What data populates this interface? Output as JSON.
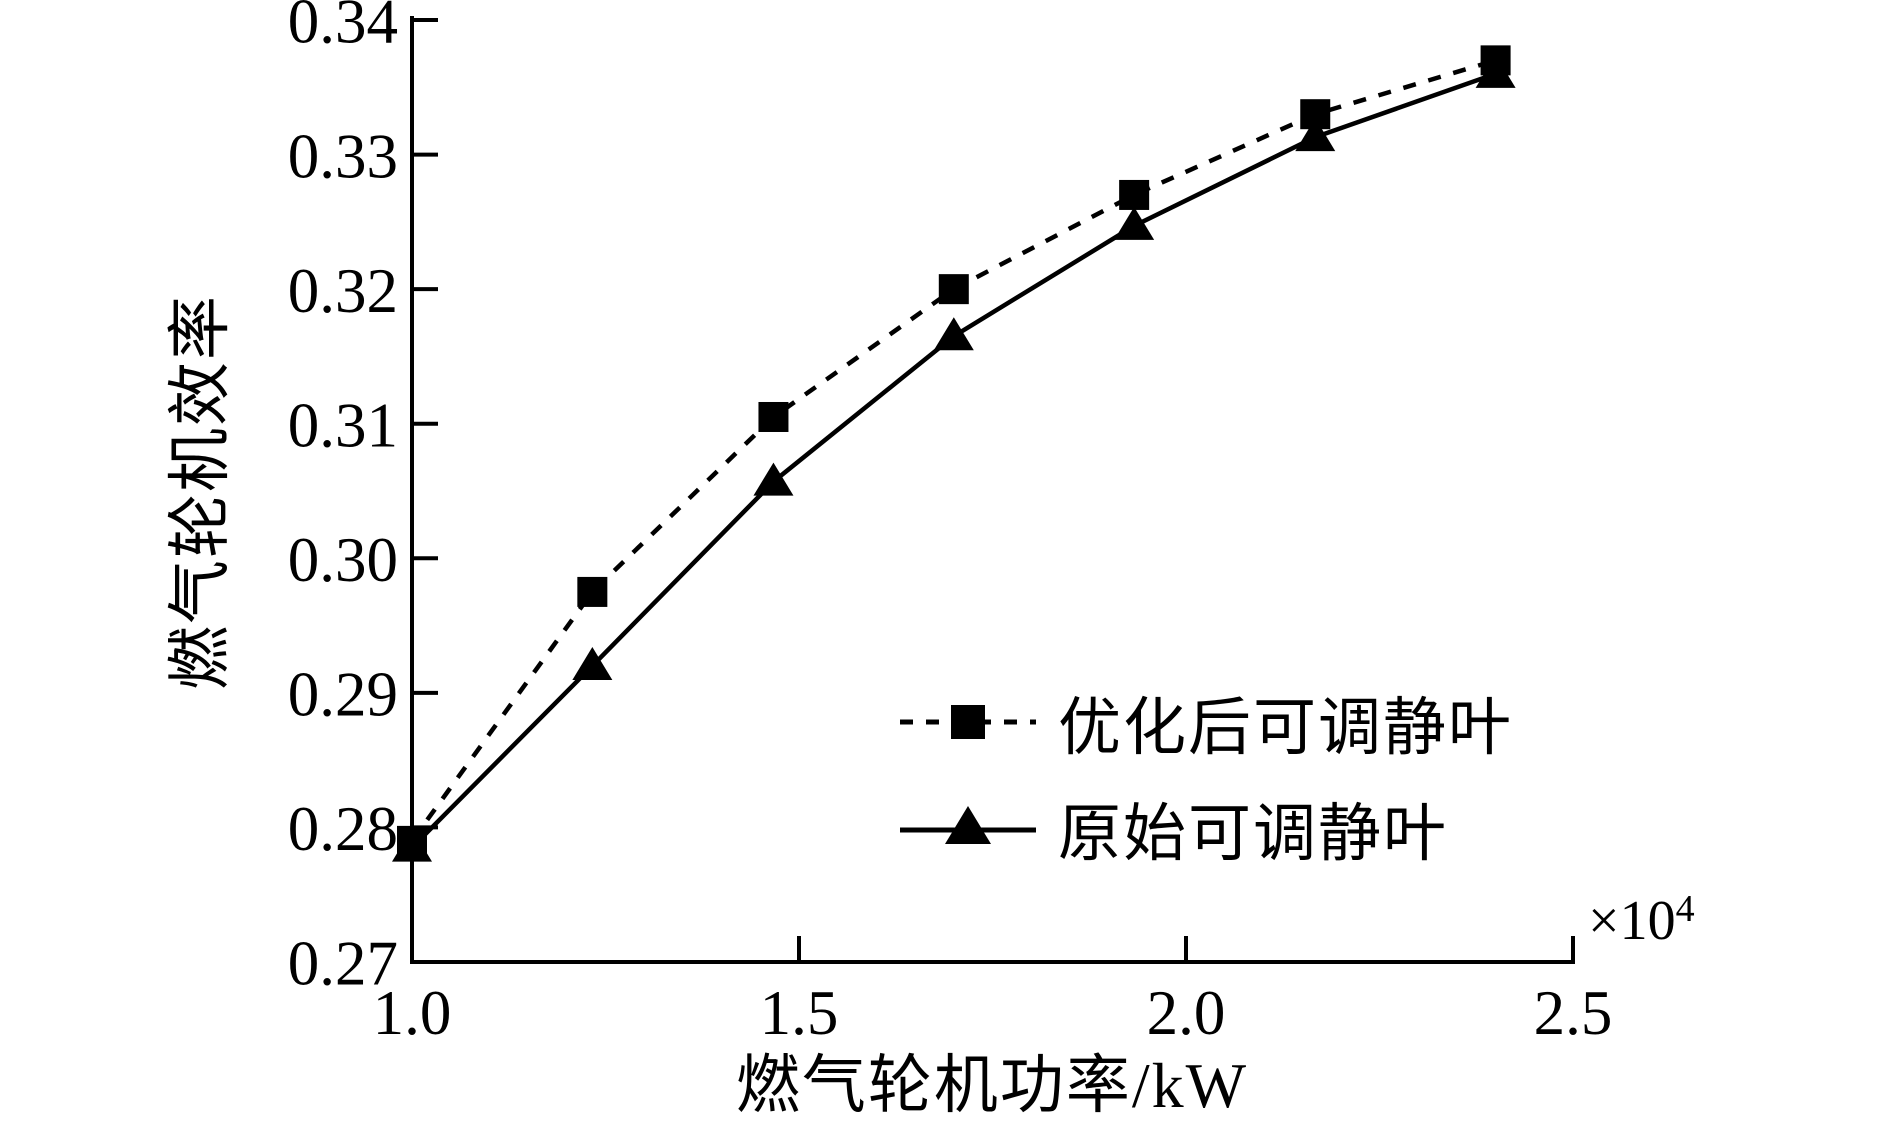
{
  "figure": {
    "background": "#ffffff",
    "ink": "#000000"
  },
  "axes": {
    "x_label": "燃气轮机功率/kW",
    "y_label": "燃气轮机效率",
    "x_ticks": [
      "1.0",
      "1.5",
      "2.0",
      "2.5"
    ],
    "y_ticks": [
      "0.27",
      "0.28",
      "0.29",
      "0.30",
      "0.31",
      "0.32",
      "0.33",
      "0.34"
    ],
    "x_offset": {
      "base": "×10",
      "exp": "4"
    }
  },
  "legend": {
    "entries": [
      {
        "label": "优化后可调静叶",
        "marker": "square",
        "line": "dotted"
      },
      {
        "label": "原始可调静叶",
        "marker": "triangle",
        "line": "solid"
      }
    ]
  },
  "chart_data": {
    "type": "line",
    "title": "",
    "xlabel": "燃气轮机功率/kW",
    "ylabel": "燃气轮机效率",
    "x_scale_note": "×10⁴ kW",
    "xlim": [
      1.0,
      2.5
    ],
    "ylim": [
      0.27,
      0.34
    ],
    "grid": false,
    "legend_position": "lower right",
    "x": [
      1.0,
      1.233,
      1.467,
      1.7,
      1.933,
      2.167,
      2.4
    ],
    "series": [
      {
        "name": "优化后可调静叶",
        "marker": "square",
        "linestyle": "dotted",
        "values": [
          0.279,
          0.2975,
          0.3105,
          0.32,
          0.327,
          0.333,
          0.337
        ]
      },
      {
        "name": "原始可调静叶",
        "marker": "triangle",
        "linestyle": "solid",
        "values": [
          0.2785,
          0.292,
          0.3057,
          0.3165,
          0.3247,
          0.3313,
          0.336
        ]
      }
    ]
  }
}
